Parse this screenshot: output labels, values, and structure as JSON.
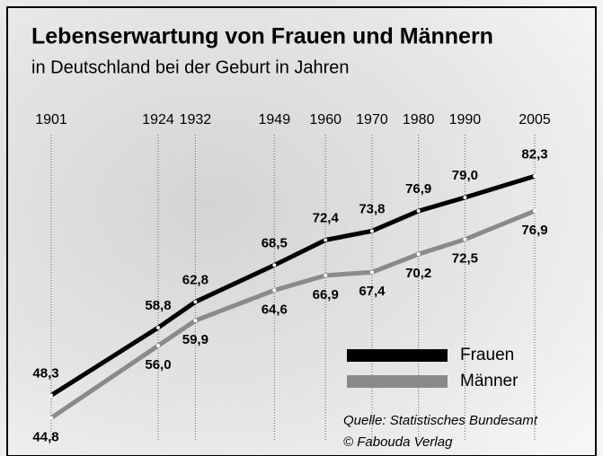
{
  "chart_data": {
    "type": "line",
    "title": "Lebenserwartung von Frauen und Männern",
    "subtitle": "in Deutschland bei der Geburt in Jahren",
    "x": [
      1901,
      1924,
      1932,
      1949,
      1960,
      1970,
      1980,
      1990,
      2005
    ],
    "xlim": [
      1901,
      2005
    ],
    "xticks": [
      1901,
      1924,
      1932,
      1949,
      1960,
      1970,
      1980,
      1990,
      2005
    ],
    "ylim": [
      40,
      90
    ],
    "grid": true,
    "legend": "bottom-right",
    "series": [
      {
        "name": "Frauen",
        "color": "#000000",
        "values": [
          48.3,
          58.8,
          62.8,
          68.5,
          72.4,
          73.8,
          76.9,
          79.0,
          82.3
        ],
        "value_labels": [
          "48,3",
          "58,8",
          "62,8",
          "68,5",
          "72,4",
          "73,8",
          "76,9",
          "79,0",
          "82,3"
        ]
      },
      {
        "name": "Männer",
        "color": "#8a8a8a",
        "values": [
          44.8,
          56.0,
          59.9,
          64.6,
          66.9,
          67.4,
          70.2,
          72.5,
          76.9
        ],
        "value_labels": [
          "44,8",
          "56,0",
          "59,9",
          "64,6",
          "66,9",
          "67,4",
          "70,2",
          "72,5",
          "76,9"
        ]
      }
    ],
    "source": "Quelle: Statistisches Bundesamt",
    "copyright": "© Fabouda Verlag"
  }
}
